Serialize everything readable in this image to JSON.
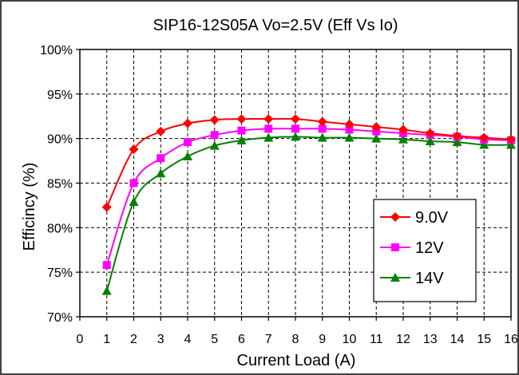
{
  "chart_data": {
    "type": "line",
    "title": "SIP16-12S05A Vo=2.5V (Eff Vs Io)",
    "xlabel": "Current Load (A)",
    "ylabel": "Efficincy (%)",
    "xlim": [
      0,
      16
    ],
    "ylim": [
      70,
      100
    ],
    "x_ticks": [
      "0",
      "1",
      "2",
      "3",
      "4",
      "5",
      "6",
      "7",
      "8",
      "9",
      "10",
      "11",
      "12",
      "13",
      "14",
      "15",
      "16"
    ],
    "y_ticks": [
      "70%",
      "75%",
      "80%",
      "85%",
      "90%",
      "95%",
      "100%"
    ],
    "grid": true,
    "legend_position": "bottom-right",
    "x": [
      1,
      2,
      3,
      4,
      5,
      6,
      7,
      8,
      9,
      10,
      11,
      12,
      13,
      14,
      15,
      16
    ],
    "series": [
      {
        "name": "9.0V",
        "color": "#ff0000",
        "marker": "diamond",
        "values": [
          82.3,
          88.8,
          90.8,
          91.7,
          92.1,
          92.2,
          92.2,
          92.2,
          91.9,
          91.6,
          91.3,
          91.0,
          90.6,
          90.3,
          90.1,
          89.9
        ]
      },
      {
        "name": "12V",
        "color": "#ff00ff",
        "marker": "square",
        "values": [
          75.8,
          85.0,
          87.8,
          89.6,
          90.4,
          90.9,
          91.1,
          91.1,
          91.1,
          91.0,
          90.8,
          90.6,
          90.4,
          90.2,
          89.9,
          89.8
        ]
      },
      {
        "name": "14V",
        "color": "#008000",
        "marker": "triangle",
        "values": [
          72.9,
          82.9,
          86.1,
          88.0,
          89.2,
          89.8,
          90.1,
          90.2,
          90.1,
          90.1,
          90.0,
          89.9,
          89.7,
          89.6,
          89.3,
          89.3
        ]
      }
    ]
  }
}
